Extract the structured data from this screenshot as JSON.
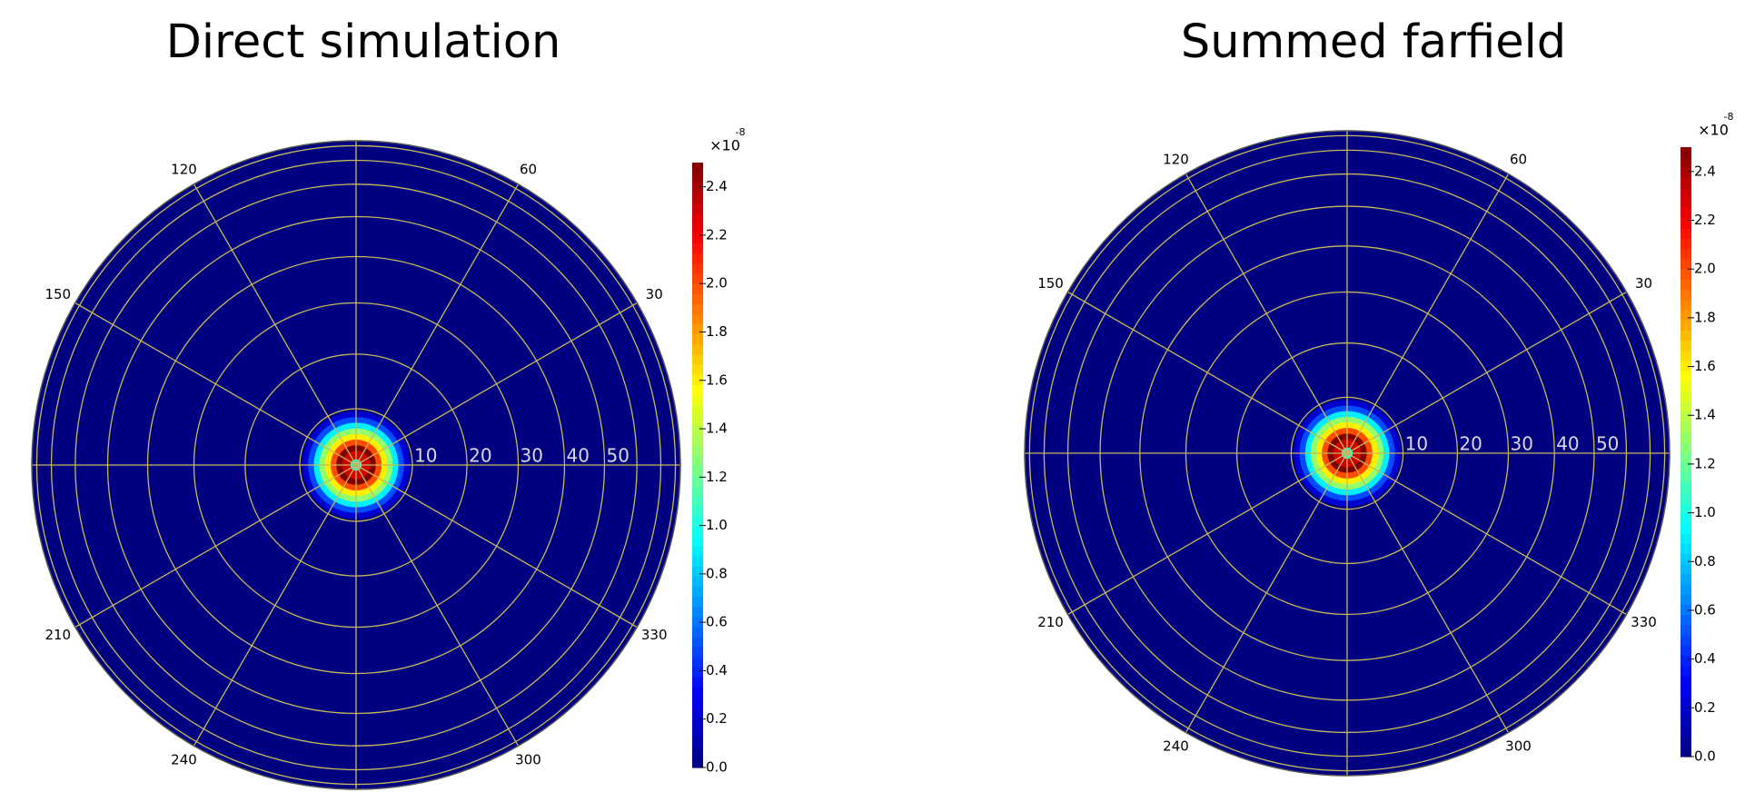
{
  "chart_data": [
    {
      "type": "polar-heatmap",
      "title": "Direct simulation",
      "rlim": [
        0,
        90
      ],
      "rscale": "sine",
      "rticks": [
        10,
        20,
        30,
        40,
        50
      ],
      "rgrid": [
        10,
        20,
        30,
        40,
        50,
        60,
        70,
        80
      ],
      "thetaticks": [
        30,
        60,
        120,
        150,
        210,
        240,
        300,
        330
      ],
      "grid": true,
      "grid_color": "#c8b85a",
      "colormap": "jet",
      "r": [
        0,
        2,
        3,
        4,
        5,
        6,
        7,
        8,
        9,
        10
      ],
      "values": [
        1.0,
        2.3,
        2.5,
        2.0,
        1.6,
        1.3,
        0.9,
        0.5,
        0.2,
        0
      ],
      "clim": [
        0,
        2.5
      ],
      "cticks": [
        {
          "value": 0,
          "label": "0.0"
        },
        0.2,
        0.4,
        0.6,
        0.8,
        {
          "value": 1,
          "label": "1.0"
        },
        1.2,
        1.4,
        1.6,
        1.8,
        {
          "value": 2,
          "label": "2.0"
        },
        2.2,
        2.4
      ],
      "colorbar_label": "×10",
      "colorbar_exponent": "-8"
    },
    {
      "type": "polar-heatmap",
      "title": "Summed farfield",
      "rlim": [
        0,
        90
      ],
      "rscale": "sine",
      "rticks": [
        10,
        20,
        30,
        40,
        50
      ],
      "rgrid": [
        10,
        20,
        30,
        40,
        50,
        60,
        70,
        80
      ],
      "thetaticks": [
        30,
        60,
        120,
        150,
        210,
        240,
        300,
        330
      ],
      "grid": true,
      "grid_color": "#c8b85a",
      "colormap": "jet",
      "r": [
        0,
        2,
        3,
        4,
        5,
        6,
        7,
        8,
        9,
        10
      ],
      "values": [
        1.0,
        2.3,
        2.5,
        2.0,
        1.6,
        1.3,
        0.9,
        0.5,
        0.2,
        0
      ],
      "clim": [
        0,
        2.5
      ],
      "cticks": [
        {
          "value": 0,
          "label": "0.0"
        },
        0.2,
        0.4,
        0.6,
        0.8,
        {
          "value": 1,
          "label": "1.0"
        },
        1.2,
        1.4,
        1.6,
        1.8,
        {
          "value": 2,
          "label": "2.0"
        },
        2.2,
        2.4
      ],
      "colorbar_label": "×10",
      "colorbar_exponent": "-8"
    }
  ]
}
